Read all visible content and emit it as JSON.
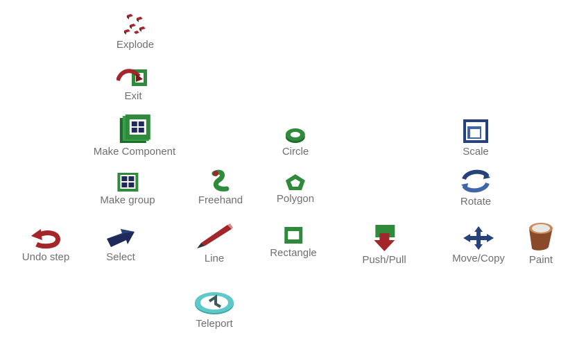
{
  "tools": {
    "explode": {
      "label": "Explode",
      "icon": "explode-icon"
    },
    "exit": {
      "label": "Exit",
      "icon": "exit-icon"
    },
    "make_component": {
      "label": "Make Component",
      "icon": "make-component-icon"
    },
    "circle": {
      "label": "Circle",
      "icon": "circle-icon"
    },
    "scale": {
      "label": "Scale",
      "icon": "scale-icon"
    },
    "make_group": {
      "label": "Make group",
      "icon": "make-group-icon"
    },
    "freehand": {
      "label": "Freehand",
      "icon": "freehand-icon"
    },
    "polygon": {
      "label": "Polygon",
      "icon": "polygon-icon"
    },
    "rotate": {
      "label": "Rotate",
      "icon": "rotate-icon"
    },
    "undo_step": {
      "label": "Undo step",
      "icon": "undo-icon"
    },
    "select": {
      "label": "Select",
      "icon": "select-arrow-icon"
    },
    "line": {
      "label": "Line",
      "icon": "pencil-icon"
    },
    "rectangle": {
      "label": "Rectangle",
      "icon": "rectangle-icon"
    },
    "push_pull": {
      "label": "Push/Pull",
      "icon": "push-pull-icon"
    },
    "move_copy": {
      "label": "Move/Copy",
      "icon": "move-icon"
    },
    "paint": {
      "label": "Paint",
      "icon": "paint-bucket-icon"
    },
    "teleport": {
      "label": "Teleport",
      "icon": "teleport-icon"
    }
  },
  "colors": {
    "label": "#6f6f6f",
    "red": "#a3262a",
    "green": "#2f8a3c",
    "blue": "#27417a",
    "navy": "#1f2a5a",
    "teal": "#5ec9c8",
    "copper": "#8a4a2a"
  }
}
